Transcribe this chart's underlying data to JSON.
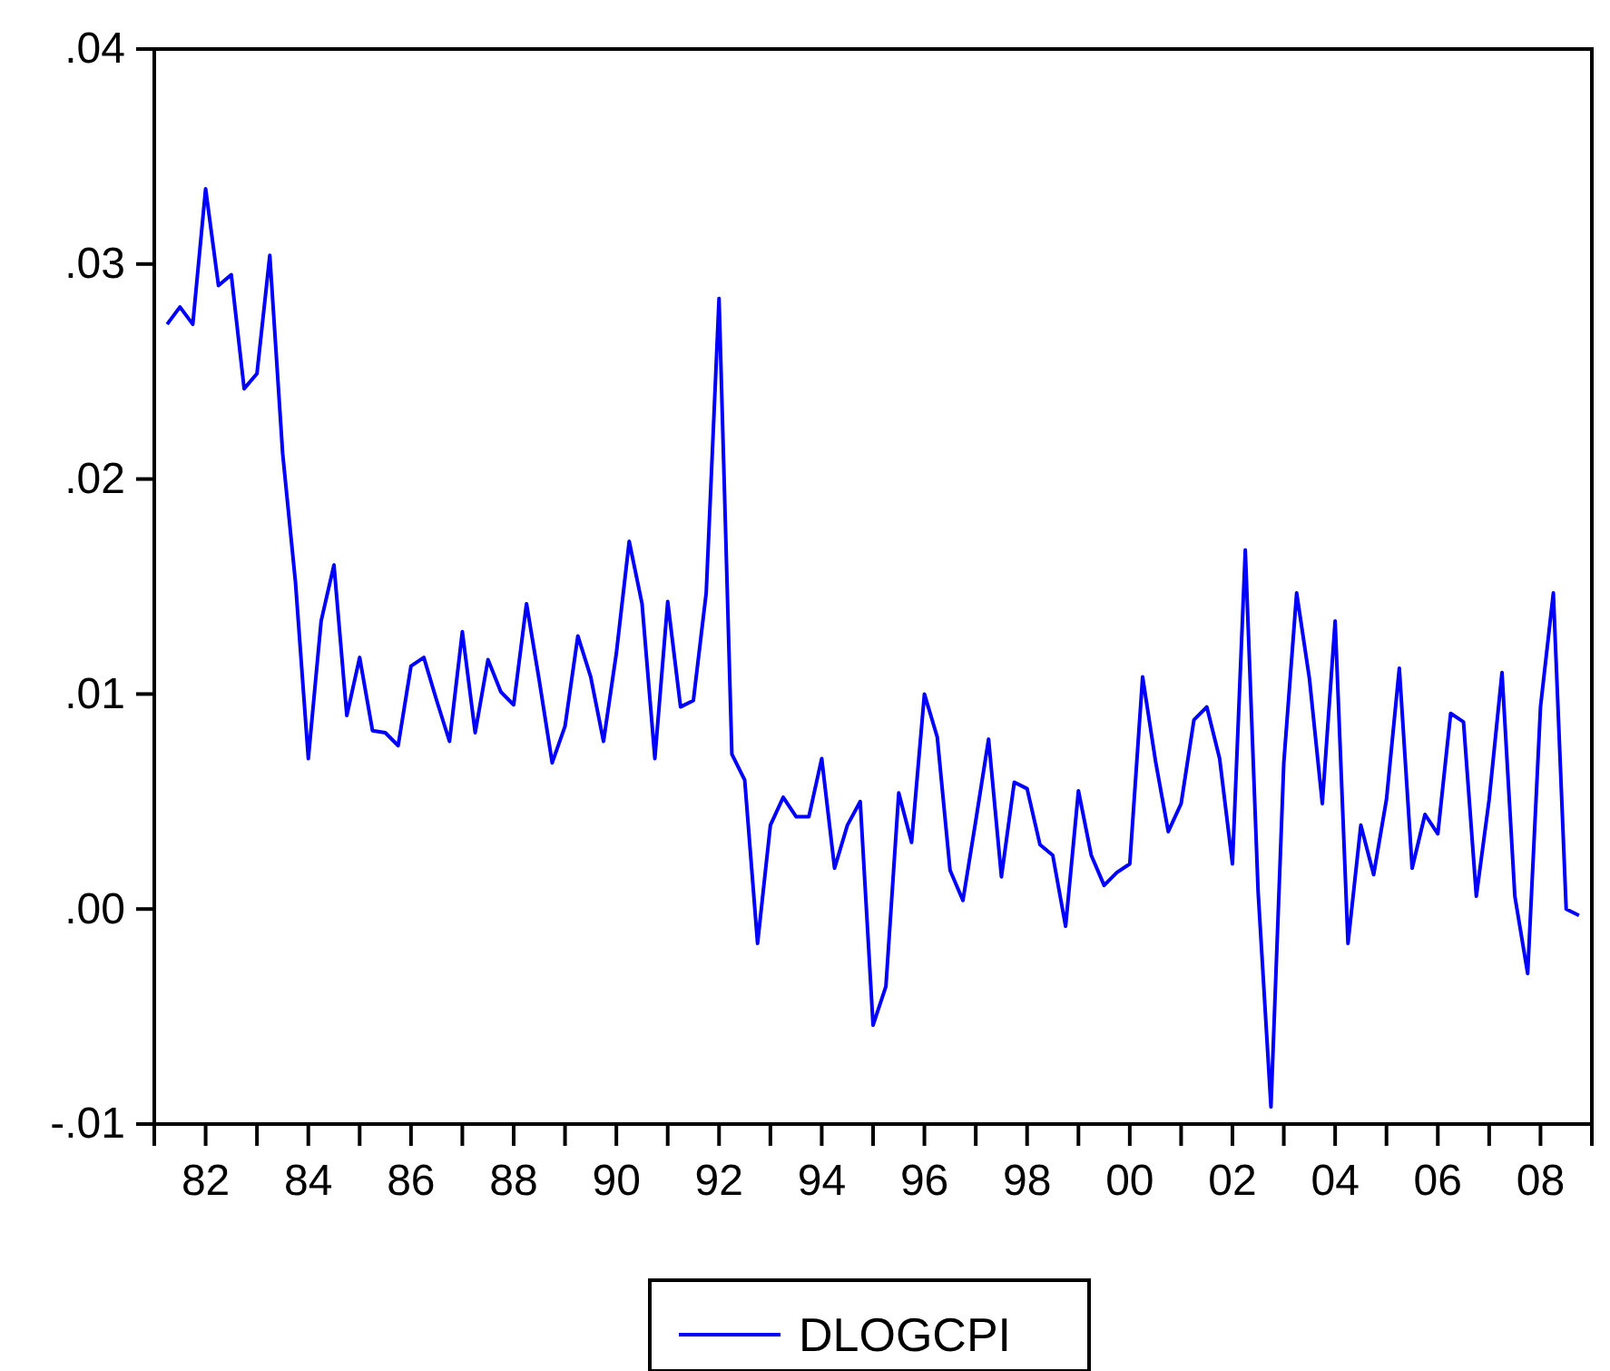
{
  "chart_data": {
    "type": "line",
    "xlim": [
      1981,
      2009
    ],
    "ylim": [
      -0.01,
      0.04
    ],
    "yticks": [
      {
        "value": -0.01,
        "label": "-.01"
      },
      {
        "value": 0,
        "label": ".00"
      },
      {
        "value": 0.01,
        "label": ".01"
      },
      {
        "value": 0.02,
        "label": ".02"
      },
      {
        "value": 0.03,
        "label": ".03"
      },
      {
        "value": 0.04,
        "label": ".04"
      }
    ],
    "xticks": [
      {
        "value": 1981,
        "label": null
      },
      {
        "value": 1982,
        "label": "82"
      },
      {
        "value": 1983,
        "label": null
      },
      {
        "value": 1984,
        "label": "84"
      },
      {
        "value": 1985,
        "label": null
      },
      {
        "value": 1986,
        "label": "86"
      },
      {
        "value": 1987,
        "label": null
      },
      {
        "value": 1988,
        "label": "88"
      },
      {
        "value": 1989,
        "label": null
      },
      {
        "value": 1990,
        "label": "90"
      },
      {
        "value": 1991,
        "label": null
      },
      {
        "value": 1992,
        "label": "92"
      },
      {
        "value": 1993,
        "label": null
      },
      {
        "value": 1994,
        "label": "94"
      },
      {
        "value": 1995,
        "label": null
      },
      {
        "value": 1996,
        "label": "96"
      },
      {
        "value": 1997,
        "label": null
      },
      {
        "value": 1998,
        "label": "98"
      },
      {
        "value": 1999,
        "label": null
      },
      {
        "value": 2000,
        "label": "00"
      },
      {
        "value": 2001,
        "label": null
      },
      {
        "value": 2002,
        "label": "02"
      },
      {
        "value": 2003,
        "label": null
      },
      {
        "value": 2004,
        "label": "04"
      },
      {
        "value": 2005,
        "label": null
      },
      {
        "value": 2006,
        "label": "06"
      },
      {
        "value": 2007,
        "label": null
      },
      {
        "value": 2008,
        "label": "08"
      }
    ],
    "x": [
      1981.25,
      1981.5,
      1981.75,
      1982,
      1982.25,
      1982.5,
      1982.75,
      1983,
      1983.25,
      1983.5,
      1983.75,
      1984,
      1984.25,
      1984.5,
      1984.75,
      1985,
      1985.25,
      1985.5,
      1985.75,
      1986,
      1986.25,
      1986.5,
      1986.75,
      1987,
      1987.25,
      1987.5,
      1987.75,
      1988,
      1988.25,
      1988.5,
      1988.75,
      1989,
      1989.25,
      1989.5,
      1989.75,
      1990,
      1990.25,
      1990.5,
      1990.75,
      1991,
      1991.25,
      1991.5,
      1991.75,
      1992,
      1992.25,
      1992.5,
      1992.75,
      1993,
      1993.25,
      1993.5,
      1993.75,
      1994,
      1994.25,
      1994.5,
      1994.75,
      1995,
      1995.25,
      1995.5,
      1995.75,
      1996,
      1996.25,
      1996.5,
      1996.75,
      1997,
      1997.25,
      1997.5,
      1997.75,
      1998,
      1998.25,
      1998.5,
      1998.75,
      1999,
      1999.25,
      1999.5,
      1999.75,
      2000,
      2000.25,
      2000.5,
      2000.75,
      2001,
      2001.25,
      2001.5,
      2001.75,
      2002,
      2002.25,
      2002.5,
      2002.75,
      2003,
      2003.25,
      2003.5,
      2003.75,
      2004,
      2004.25,
      2004.5,
      2004.75,
      2005,
      2005.25,
      2005.5,
      2005.75,
      2006,
      2006.25,
      2006.5,
      2006.75,
      2007,
      2007.25,
      2007.5,
      2007.75,
      2008,
      2008.25,
      2008.5,
      2008.75
    ],
    "series": [
      {
        "name": "DLOGCPI",
        "color": "#0000ff",
        "values": [
          0.0272,
          0.028,
          0.0272,
          0.0335,
          0.029,
          0.0295,
          0.0242,
          0.0249,
          0.0304,
          0.0212,
          0.0152,
          0.007,
          0.0134,
          0.016,
          0.009,
          0.0117,
          0.0083,
          0.0082,
          0.0076,
          0.0113,
          0.0117,
          0.0097,
          0.0078,
          0.0129,
          0.0082,
          0.0116,
          0.0101,
          0.0095,
          0.0142,
          0.0106,
          0.0068,
          0.0085,
          0.0127,
          0.0108,
          0.0078,
          0.0119,
          0.0171,
          0.0142,
          0.007,
          0.0143,
          0.0094,
          0.0097,
          0.0147,
          0.0284,
          0.0072,
          0.006,
          -0.0016,
          0.0039,
          0.0052,
          0.0043,
          0.0043,
          0.007,
          0.0019,
          0.0039,
          0.005,
          -0.0054,
          -0.0036,
          0.0054,
          0.0031,
          0.01,
          0.008,
          0.0018,
          0.0004,
          0.0041,
          0.0079,
          0.0015,
          0.0059,
          0.0056,
          0.003,
          0.0025,
          -0.0008,
          0.0055,
          0.0025,
          0.0011,
          0.0017,
          0.0021,
          0.0108,
          0.0069,
          0.0036,
          0.0049,
          0.0088,
          0.0094,
          0.007,
          0.0021,
          0.0167,
          0.0008,
          -0.0092,
          0.0068,
          0.0147,
          0.0107,
          0.0049,
          0.0134,
          -0.0016,
          0.0039,
          0.0016,
          0.0051,
          0.0112,
          0.0019,
          0.0044,
          0.0035,
          0.0091,
          0.0087,
          0.0006,
          0.0051,
          0.011,
          0.0006,
          -0.003,
          0.0094,
          0.0147,
          0.0,
          -0.0003
        ]
      }
    ],
    "legend": "bottom",
    "grid": false,
    "line_style": "solid",
    "marker": "none"
  }
}
